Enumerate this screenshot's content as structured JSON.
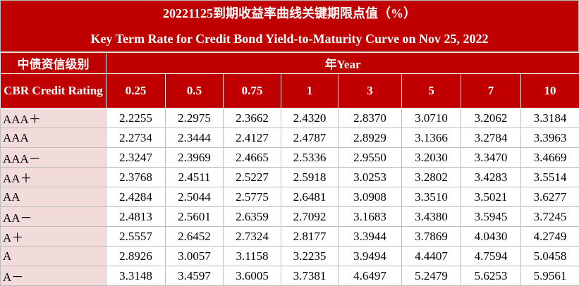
{
  "header": {
    "title_cn": "20221125到期收益率曲线关键期限点值（%）",
    "title_en": "Key Term Rate for Credit Bond Yield-to-Maturity Curve on Nov 25, 2022"
  },
  "table": {
    "rating_header_cn": "中债资信级别",
    "rating_header_en": "CBR Credit Rating",
    "term_header": "年Year",
    "terms": [
      "0.25",
      "0.5",
      "0.75",
      "1",
      "3",
      "5",
      "7",
      "10"
    ],
    "rows": [
      [
        "AAA＋",
        "2.2255",
        "2.2975",
        "2.3662",
        "2.4320",
        "2.8370",
        "3.0710",
        "3.2062",
        "3.3184"
      ],
      [
        "AAA",
        "2.2734",
        "2.3444",
        "2.4127",
        "2.4787",
        "2.8929",
        "3.1366",
        "3.2784",
        "3.3963"
      ],
      [
        "AAA－",
        "2.3247",
        "2.3969",
        "2.4665",
        "2.5336",
        "2.9550",
        "3.2030",
        "3.3470",
        "3.4669"
      ],
      [
        "AA＋",
        "2.3768",
        "2.4511",
        "2.5227",
        "2.5918",
        "3.0253",
        "3.2802",
        "3.4283",
        "3.5514"
      ],
      [
        "AA",
        "2.4284",
        "2.5044",
        "2.5775",
        "2.6481",
        "3.0908",
        "3.3510",
        "3.5021",
        "3.6277"
      ],
      [
        "AA－",
        "2.4813",
        "2.5601",
        "2.6359",
        "2.7092",
        "3.1683",
        "3.4380",
        "3.5945",
        "3.7245"
      ],
      [
        "A＋",
        "2.5557",
        "2.6452",
        "2.7324",
        "2.8177",
        "3.3944",
        "3.7869",
        "4.0430",
        "4.2749"
      ],
      [
        "A",
        "2.8926",
        "3.0057",
        "3.1158",
        "3.2235",
        "3.9494",
        "4.4407",
        "4.7594",
        "5.0458"
      ],
      [
        "A－",
        "3.3148",
        "3.4597",
        "3.6005",
        "3.7381",
        "4.6497",
        "5.2479",
        "5.6253",
        "5.9561"
      ]
    ]
  }
}
